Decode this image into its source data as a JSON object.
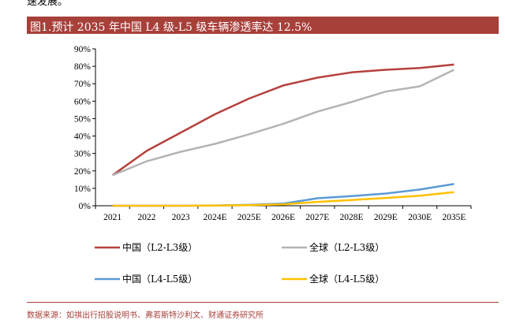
{
  "header": {
    "cut_text": "速发展。",
    "figure_title": "图1.预计 2035 年中国 L4 级-L5 级车辆渗透率达 12.5%"
  },
  "footer": {
    "source": "数据来源：如祺出行招股说明书、弗若斯特沙利文、财通证券研究所"
  },
  "colors": {
    "accent": "#a8403a",
    "china_l2l3": "#b5413d",
    "global_l2l3": "#b4b4b4",
    "china_l4l5": "#5b9bd5",
    "global_l4l5": "#ffc000"
  },
  "chart_data": {
    "type": "line",
    "title": "图1.预计 2035 年中国 L4 级-L5 级车辆渗透率达 12.5%",
    "xlabel": "",
    "ylabel": "",
    "ylim": [
      0,
      90
    ],
    "yticks": [
      "0%",
      "10%",
      "20%",
      "30%",
      "40%",
      "50%",
      "60%",
      "70%",
      "80%",
      "90%"
    ],
    "categories": [
      "2021",
      "2022",
      "2023",
      "2024E",
      "2025E",
      "2026E",
      "2027E",
      "2028E",
      "2029E",
      "2030E",
      "2035E"
    ],
    "legend_position": "bottom",
    "series": [
      {
        "name": "中国（L2-L3级）",
        "color_key": "china_l2l3",
        "values": [
          17.5,
          31.5,
          42,
          52.5,
          61.5,
          69,
          73.5,
          76.5,
          78,
          79,
          81
        ]
      },
      {
        "name": "全球（L2-L3级）",
        "color_key": "global_l2l3",
        "values": [
          17.5,
          25.5,
          31,
          35.5,
          41,
          47,
          54,
          59.5,
          65.5,
          68.5,
          78
        ]
      },
      {
        "name": "中国（L4-L5级）",
        "color_key": "china_l4l5",
        "values": [
          0,
          0,
          0,
          0.2,
          0.5,
          1.2,
          4.3,
          5.5,
          7,
          9.3,
          12.5
        ]
      },
      {
        "name": "全球（L4-L5级）",
        "color_key": "global_l4l5",
        "values": [
          0,
          0,
          0,
          0.1,
          0.3,
          0.8,
          2.2,
          3.3,
          4.5,
          5.8,
          7.8
        ]
      }
    ]
  }
}
